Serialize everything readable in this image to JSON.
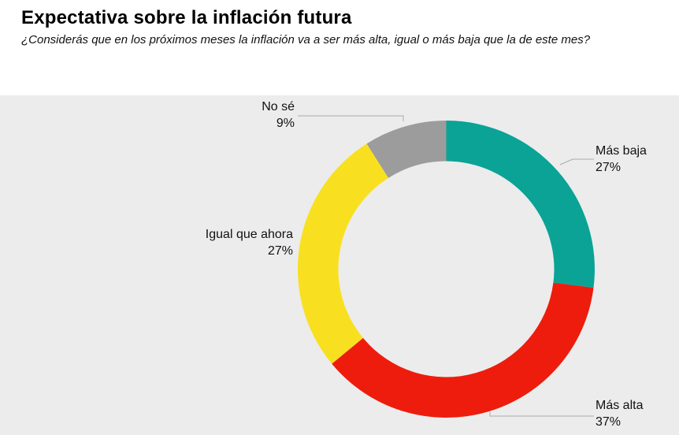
{
  "header": {
    "title": "Expectativa sobre la inflación futura",
    "subtitle": "¿Considerás que en los próximos meses la inflación va a ser más alta, igual o más baja que la de este mes?"
  },
  "chart_data": {
    "type": "pie",
    "subtype": "donut",
    "title": "Expectativa sobre la inflación futura",
    "question": "¿Considerás que en los próximos meses la inflación va a ser más alta, igual o más baja que la de este mes?",
    "unit": "%",
    "start_angle_deg": 0,
    "direction": "clockwise",
    "legend_position": "outside-callouts",
    "segments": [
      {
        "label": "Más baja",
        "value": 27,
        "value_label": "27%",
        "color": "#0aa396"
      },
      {
        "label": "Más alta",
        "value": 37,
        "value_label": "37%",
        "color": "#ee1c0c"
      },
      {
        "label": "Igual que ahora",
        "value": 27,
        "value_label": "27%",
        "color": "#f8e020"
      },
      {
        "label": "No sé",
        "value": 9,
        "value_label": "9%",
        "color": "#9c9c9c"
      }
    ],
    "colors": {
      "panel_background": "#ececec",
      "leader_line": "#aaaaaa",
      "text": "#111111"
    }
  }
}
